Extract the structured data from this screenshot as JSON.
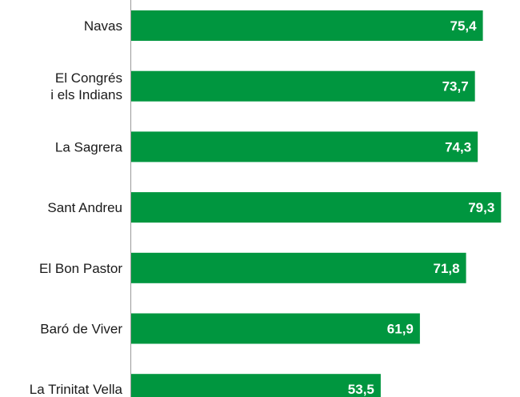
{
  "chart_data": {
    "type": "bar",
    "orientation": "horizontal",
    "title": "",
    "xlabel": "",
    "ylabel": "",
    "categories": [
      [
        "Navas"
      ],
      [
        "El Congrés",
        "i els Indians"
      ],
      [
        "La Sagrera"
      ],
      [
        "Sant Andreu"
      ],
      [
        "El Bon Pastor"
      ],
      [
        "Baró de Viver"
      ],
      [
        "La Trinitat Vella"
      ]
    ],
    "values": [
      75.4,
      73.7,
      74.3,
      79.3,
      71.8,
      61.9,
      53.5
    ],
    "value_labels": [
      "75,4",
      "73,7",
      "74,3",
      "79,3",
      "71,8",
      "61,9",
      "53,5"
    ],
    "bar_color": "#00963f",
    "axis_color": "#9a9a9a",
    "grid": false,
    "legend": "none"
  }
}
